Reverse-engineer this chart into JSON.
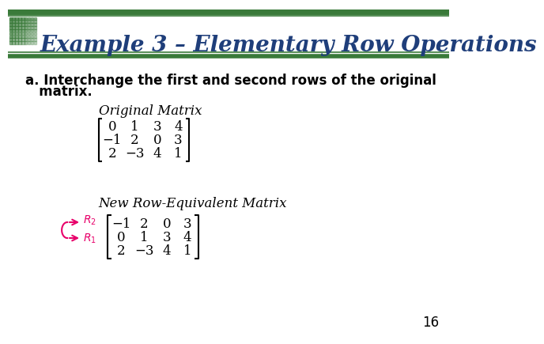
{
  "title": "Example 3 – Elementary Row Operations",
  "title_color": "#1F3E7A",
  "slide_bg": "#FFFFFF",
  "bar_color": "#3A7A3A",
  "text_a_line1": "a. Interchange the first and second rows of the original",
  "text_a_line2": "   matrix.",
  "label_original": "Original Matrix",
  "label_new": "New Row-Equivalent Matrix",
  "original_matrix": [
    [
      "0",
      "1",
      "3",
      "4"
    ],
    [
      "−1",
      "2",
      "0",
      "3"
    ],
    [
      "2",
      "−3",
      "4",
      "1"
    ]
  ],
  "new_matrix": [
    [
      "−1",
      "2",
      "0",
      "3"
    ],
    [
      "0",
      "1",
      "3",
      "4"
    ],
    [
      "2",
      "−3",
      "4",
      "1"
    ]
  ],
  "arrow_color": "#E8006A",
  "page_number": "16",
  "font_size_title": 20,
  "font_size_body": 12,
  "font_size_matrix": 12,
  "font_size_label": 12
}
